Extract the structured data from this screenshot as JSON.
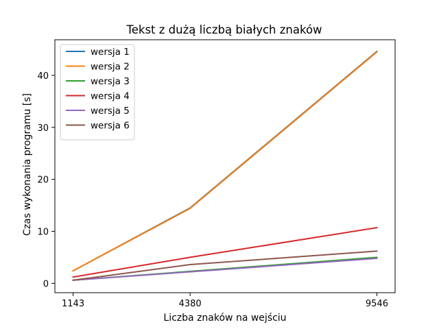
{
  "chart_data": {
    "type": "line",
    "title": "Tekst z dużą liczbą białych znaków",
    "xlabel": "Liczba znaków na wejściu",
    "ylabel": "Czas wykonania programu [s]",
    "x": [
      1143,
      4380,
      9546
    ],
    "x_tick_labels": [
      "1143",
      "4380",
      "9546"
    ],
    "y_ticks": [
      0,
      10,
      20,
      30,
      40
    ],
    "y_tick_labels": [
      "0",
      "10",
      "20",
      "30",
      "40"
    ],
    "xlim": [
      638.85,
      10050.15
    ],
    "ylim": [
      -1.8,
      46.85
    ],
    "grid": false,
    "legend_position": "top-left",
    "series": [
      {
        "name": "wersja 1",
        "color": "#1f77b4",
        "values": [
          2.4,
          14.5,
          44.6
        ]
      },
      {
        "name": "wersja 2",
        "color": "#ff7f0e",
        "values": [
          2.4,
          14.4,
          44.5
        ]
      },
      {
        "name": "wersja 3",
        "color": "#2ca02c",
        "values": [
          0.6,
          2.3,
          5.0
        ]
      },
      {
        "name": "wersja 4",
        "color": "#d62728",
        "values": [
          1.2,
          5.0,
          10.7
        ]
      },
      {
        "name": "wersja 5",
        "color": "#9467bd",
        "values": [
          0.6,
          2.2,
          4.8
        ]
      },
      {
        "name": "wersja 6",
        "color": "#8c564b",
        "values": [
          0.6,
          3.6,
          6.2
        ]
      }
    ]
  }
}
